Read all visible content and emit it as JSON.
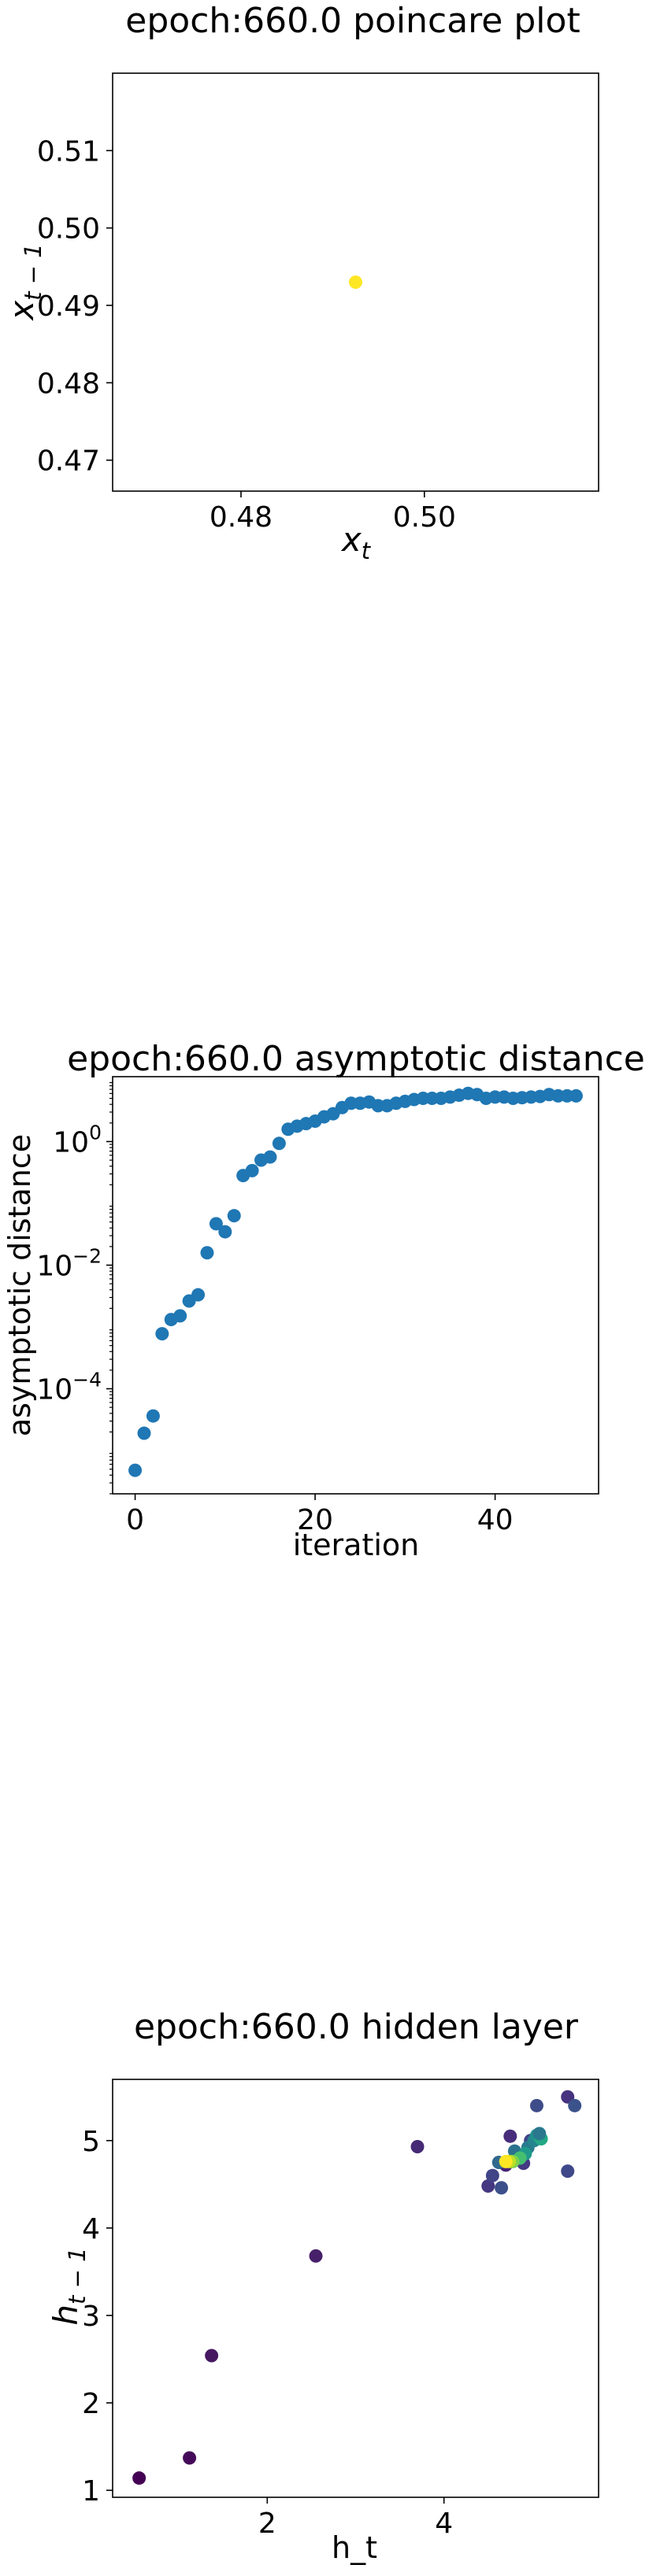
{
  "chart_data": [
    {
      "type": "scatter",
      "title": "epoch:660.0 poincare plot",
      "xlabel": "x",
      "xlabel_sub": "t",
      "ylabel": "x",
      "ylabel_sub": "t − 1",
      "xlim": [
        0.466,
        0.519
      ],
      "ylim": [
        0.466,
        0.52
      ],
      "xticks": [
        {
          "v": 0.48,
          "label": "0.48"
        },
        {
          "v": 0.5,
          "label": "0.50"
        }
      ],
      "yticks": [
        {
          "v": 0.47,
          "label": "0.47"
        },
        {
          "v": 0.48,
          "label": "0.48"
        },
        {
          "v": 0.49,
          "label": "0.49"
        },
        {
          "v": 0.5,
          "label": "0.50"
        },
        {
          "v": 0.51,
          "label": "0.51"
        }
      ],
      "points": [
        {
          "x": 0.4925,
          "y": 0.493
        }
      ],
      "colors": [
        "#fde725"
      ]
    },
    {
      "type": "scatter",
      "title": "epoch:660.0 asymptotic distance",
      "xlabel": "iteration",
      "ylabel": "asymptotic distance",
      "yscale": "log",
      "xlim": [
        -2.5,
        51.5
      ],
      "ylim_exp": [
        -5.7,
        1.05
      ],
      "xticks": [
        {
          "v": 0,
          "label": "0"
        },
        {
          "v": 20,
          "label": "20"
        },
        {
          "v": 40,
          "label": "40"
        }
      ],
      "yticks": [
        {
          "exp": 0,
          "base": "10",
          "sup": "0"
        },
        {
          "exp": -2,
          "base": "10",
          "sup": "−2"
        },
        {
          "exp": -4,
          "base": "10",
          "sup": "−4"
        }
      ],
      "x": [
        0,
        1,
        2,
        3,
        4,
        5,
        6,
        7,
        8,
        9,
        10,
        11,
        12,
        13,
        14,
        15,
        16,
        17,
        18,
        19,
        20,
        21,
        22,
        23,
        24,
        25,
        26,
        27,
        28,
        29,
        30,
        31,
        32,
        33,
        34,
        35,
        36,
        37,
        38,
        39,
        40,
        41,
        42,
        43,
        44,
        45,
        46,
        47,
        48,
        49
      ],
      "log10_y": [
        -5.32,
        -4.72,
        -4.44,
        -3.11,
        -2.88,
        -2.82,
        -2.58,
        -2.48,
        -1.8,
        -1.33,
        -1.46,
        -1.2,
        -0.55,
        -0.47,
        -0.3,
        -0.25,
        -0.03,
        0.2,
        0.25,
        0.29,
        0.33,
        0.4,
        0.45,
        0.55,
        0.62,
        0.62,
        0.64,
        0.58,
        0.58,
        0.62,
        0.65,
        0.68,
        0.7,
        0.7,
        0.7,
        0.72,
        0.75,
        0.78,
        0.76,
        0.7,
        0.72,
        0.72,
        0.7,
        0.71,
        0.72,
        0.73,
        0.76,
        0.74,
        0.74,
        0.74
      ],
      "color": "#1f77b4"
    },
    {
      "type": "scatter",
      "title": "epoch:660.0 hidden layer",
      "xlabel": "h_t",
      "ylabel": "h",
      "ylabel_sub": "t − 1",
      "xlim": [
        0.25,
        5.75
      ],
      "ylim": [
        0.92,
        5.7
      ],
      "xticks": [
        {
          "v": 2,
          "label": "2"
        },
        {
          "v": 4,
          "label": "4"
        }
      ],
      "yticks": [
        {
          "v": 1,
          "label": "1"
        },
        {
          "v": 2,
          "label": "2"
        },
        {
          "v": 3,
          "label": "3"
        },
        {
          "v": 4,
          "label": "4"
        },
        {
          "v": 5,
          "label": "5"
        }
      ],
      "points": [
        {
          "x": 0.55,
          "y": 1.14,
          "c": "#440154"
        },
        {
          "x": 1.12,
          "y": 1.37,
          "c": "#450b5a"
        },
        {
          "x": 1.37,
          "y": 2.54,
          "c": "#461862"
        },
        {
          "x": 2.55,
          "y": 3.68,
          "c": "#47206a"
        },
        {
          "x": 3.7,
          "y": 4.93,
          "c": "#472a76"
        },
        {
          "x": 4.5,
          "y": 4.48,
          "c": "#453781"
        },
        {
          "x": 4.55,
          "y": 4.6,
          "c": "#414487"
        },
        {
          "x": 4.65,
          "y": 4.46,
          "c": "#3c4f8a"
        },
        {
          "x": 4.7,
          "y": 4.72,
          "c": "#482475"
        },
        {
          "x": 4.75,
          "y": 5.05,
          "c": "#472d7b"
        },
        {
          "x": 4.9,
          "y": 4.74,
          "c": "#443983"
        },
        {
          "x": 4.98,
          "y": 5.0,
          "c": "#404688"
        },
        {
          "x": 5.05,
          "y": 5.4,
          "c": "#3e4c8a"
        },
        {
          "x": 5.4,
          "y": 5.5,
          "c": "#46327e"
        },
        {
          "x": 5.48,
          "y": 5.4,
          "c": "#3b528b"
        },
        {
          "x": 5.4,
          "y": 4.65,
          "c": "#3f4889"
        },
        {
          "x": 4.62,
          "y": 4.75,
          "c": "#31688e"
        },
        {
          "x": 4.8,
          "y": 4.88,
          "c": "#2c728e"
        },
        {
          "x": 4.95,
          "y": 4.92,
          "c": "#287c8e"
        },
        {
          "x": 5.02,
          "y": 5.0,
          "c": "#25848e"
        },
        {
          "x": 5.05,
          "y": 5.06,
          "c": "#21918c"
        },
        {
          "x": 4.92,
          "y": 4.85,
          "c": "#1f9a8a"
        },
        {
          "x": 5.1,
          "y": 5.02,
          "c": "#22a884"
        },
        {
          "x": 5.08,
          "y": 5.08,
          "c": "#2a788e"
        },
        {
          "x": 4.86,
          "y": 4.8,
          "c": "#44bf70"
        },
        {
          "x": 4.78,
          "y": 4.76,
          "c": "#7ad151"
        },
        {
          "x": 4.74,
          "y": 4.76,
          "c": "#bddf26"
        },
        {
          "x": 4.7,
          "y": 4.76,
          "c": "#fde725"
        }
      ]
    }
  ]
}
